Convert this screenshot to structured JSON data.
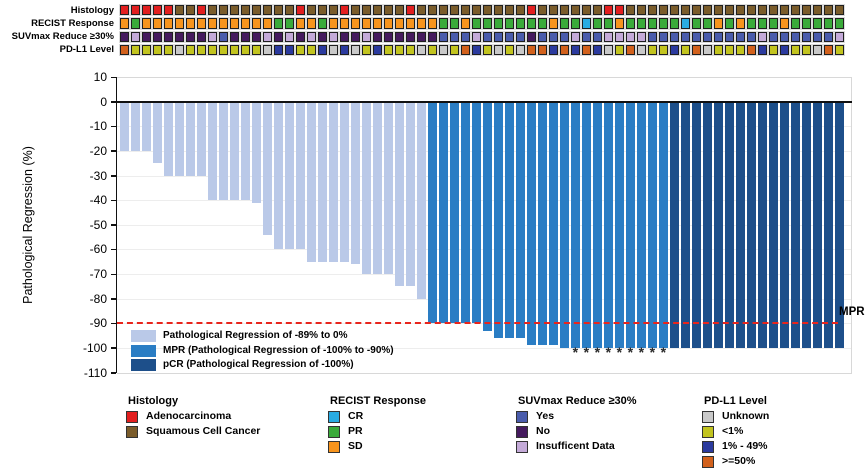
{
  "tracks": {
    "palette": {
      "A": "#e21f1f",
      "S": "#7a5c2b",
      "O": "#f7941d",
      "G": "#3aaa3a",
      "C": "#29abe2",
      "Y": "#4a5cac",
      "N": "#451a5e",
      "I": "#c4aad8",
      "U": "#c9c9c9",
      "L": "#c2c41f",
      "M": "#2b3a9e",
      "H": "#d2611c"
    },
    "rows": [
      {
        "label": "Histology",
        "cells": "AAAAASSASSSSSSSSASSSASSSSSASSSSSSSSSSASSSSSSAASSSSSSSSSSSSSSSSSSSS"
      },
      {
        "label": "RECIST Response",
        "cells": "OGOOOOOOOOOOOOGGOOGOOOOOOOOOOGGOGGGGGGGOGGCGGOGGGGGCGGOGOGGGOGGGGG"
      },
      {
        "label": "SUVmax Reduce ≥30%",
        "cells": "NINNNNNNIYNNNININININNINNNNNNYYYIYYYYNYYYIYYIIIIYYYYYYYYYYIYYYYYYI"
      },
      {
        "label": "PD-L1 Level",
        "cells": "HLLLLULLLLLLLUMMLLMUMULMLLLULULHMLULUHHMHMHMULHULLMLHULLLHMLMLLUHL"
      }
    ]
  },
  "chart_data": {
    "type": "bar",
    "title": "",
    "xlabel": "",
    "ylabel": "Pathological Regression (%)",
    "ylim": [
      -110,
      10
    ],
    "yticks": [
      10,
      0,
      -10,
      -20,
      -30,
      -40,
      -50,
      -60,
      -70,
      -80,
      -90,
      -100,
      -110
    ],
    "grid": true,
    "n_patients": 66,
    "values": [
      -20,
      -20,
      -20,
      -25,
      -30,
      -30,
      -30,
      -30,
      -40,
      -40,
      -40,
      -40,
      -41,
      -54,
      -60,
      -60,
      -60,
      -65,
      -65,
      -65,
      -65,
      -66,
      -70,
      -70,
      -70,
      -75,
      -75,
      -80,
      -90,
      -90,
      -90,
      -90,
      -90,
      -93,
      -96,
      -96,
      -96,
      -99,
      -99,
      -99,
      -100,
      -100,
      -100,
      -100,
      -100,
      -100,
      -100,
      -100,
      -100,
      -100,
      -100,
      -100,
      -100,
      -100,
      -100,
      -100,
      -100,
      -100,
      -100,
      -100,
      -100,
      -100,
      -100,
      -100,
      -100,
      -100
    ],
    "segments": [
      {
        "group": "regression",
        "count": 28
      },
      {
        "group": "mpr",
        "count": 22
      },
      {
        "group": "pcr",
        "count": 16
      }
    ],
    "colors": {
      "regression": "#bac9e8",
      "mpr": "#2a7dc4",
      "pcr": "#1d4f8a",
      "threshold_line": "#e8251c"
    },
    "threshold": {
      "value": -90,
      "label": "MPR"
    },
    "asterisk_symbol": "*",
    "asterisk_columns": [
      42,
      43,
      44,
      45,
      46,
      47,
      48,
      49,
      50
    ],
    "legend": [
      {
        "key": "regression",
        "label": "Pathological Regression of -89% to 0%"
      },
      {
        "key": "mpr",
        "label": "MPR (Pathological Regression of -100% to -90%)"
      },
      {
        "key": "pcr",
        "label": "pCR (Pathological Regression of -100%)"
      }
    ],
    "legend_position": "bottom-left-inside"
  },
  "bottom_legend": {
    "groups": [
      {
        "title": "Histology",
        "items": [
          {
            "label": "Adenocarcinoma",
            "color": "#e21f1f"
          },
          {
            "label": "Squamous Cell Cancer",
            "color": "#7a5c2b"
          }
        ]
      },
      {
        "title": "RECIST Response",
        "items": [
          {
            "label": "CR",
            "color": "#29abe2"
          },
          {
            "label": "PR",
            "color": "#3aaa3a"
          },
          {
            "label": "SD",
            "color": "#f7941d"
          }
        ]
      },
      {
        "title": "SUVmax Reduce ≥30%",
        "items": [
          {
            "label": "Yes",
            "color": "#4a5cac"
          },
          {
            "label": "No",
            "color": "#451a5e"
          },
          {
            "label": "Insufficent Data",
            "color": "#c4aad8"
          }
        ]
      },
      {
        "title": "PD-L1 Level",
        "items": [
          {
            "label": "Unknown",
            "color": "#c9c9c9"
          },
          {
            "label": "<1%",
            "color": "#c2c41f"
          },
          {
            "label": "1% - 49%",
            "color": "#2b3a9e"
          },
          {
            "label": ">=50%",
            "color": "#d2611c"
          }
        ]
      }
    ]
  }
}
